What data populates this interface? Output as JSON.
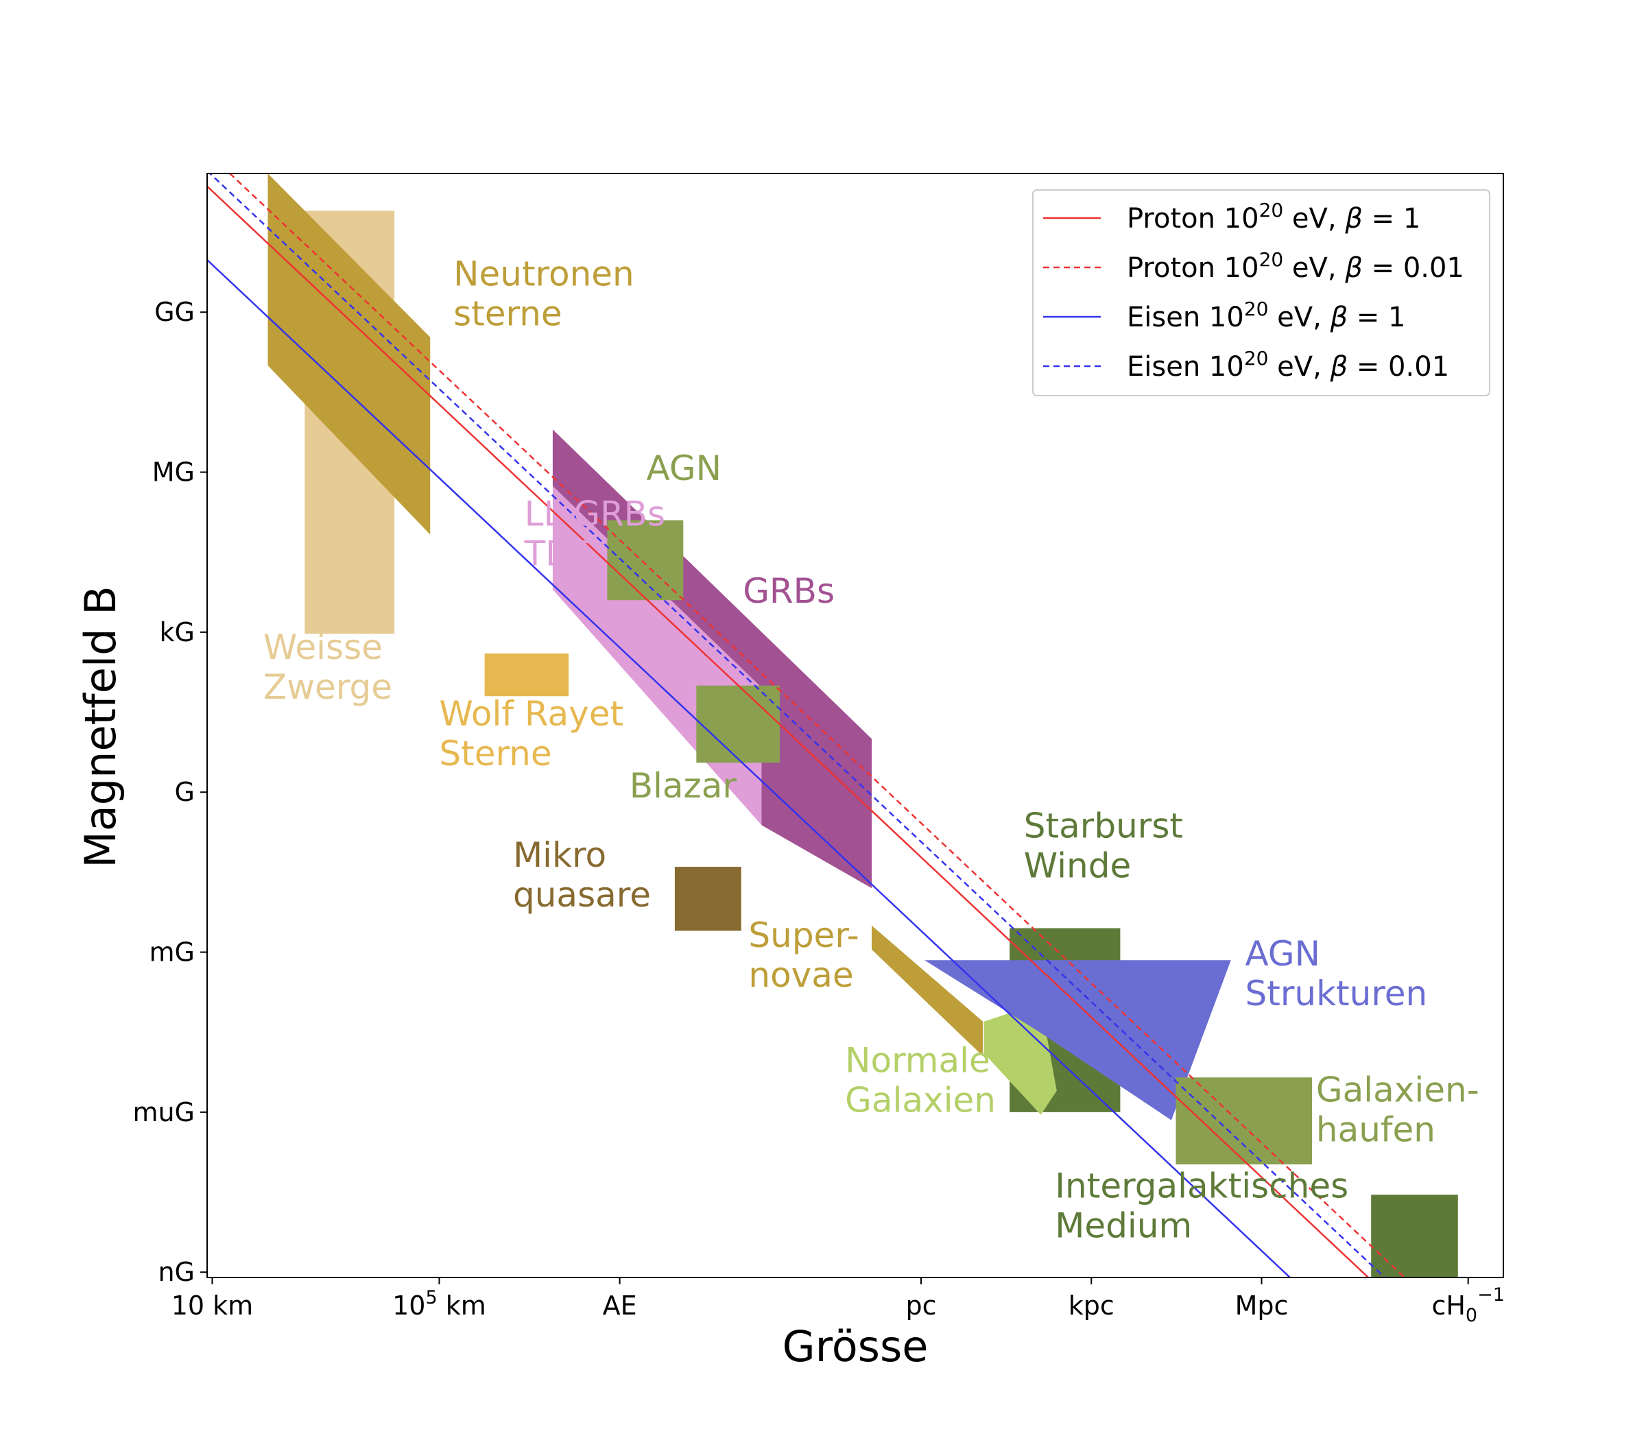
{
  "chart_data": {
    "type": "area",
    "xlabel": "Grösse",
    "ylabel": "Magnetfeld B",
    "x_scale": "log",
    "y_scale": "log",
    "x_unit": "cm",
    "y_unit": "Gauss",
    "xlim_log10": [
      5.91,
      28.75
    ],
    "ylim_log10": [
      -9.1,
      11.6
    ],
    "x_ticks": [
      {
        "log10": 6.0,
        "label": "10 km",
        "sup": "",
        "sub": ""
      },
      {
        "log10": 10.0,
        "label": "10",
        "sup": "5",
        "suffix": " km",
        "sub": ""
      },
      {
        "log10": 13.18,
        "label": "AE",
        "sup": "",
        "sub": ""
      },
      {
        "log10": 18.49,
        "label": "pc",
        "sup": "",
        "sub": ""
      },
      {
        "log10": 21.49,
        "label": "kpc",
        "sup": "",
        "sub": ""
      },
      {
        "log10": 24.49,
        "label": "Mpc",
        "sup": "",
        "sub": ""
      },
      {
        "log10": 28.13,
        "label": "cH",
        "sup": "−1",
        "sub": "0"
      }
    ],
    "y_ticks": [
      {
        "log10": 9,
        "label": "GG"
      },
      {
        "log10": 6,
        "label": "MG"
      },
      {
        "log10": 3,
        "label": "kG"
      },
      {
        "log10": 0,
        "label": "G"
      },
      {
        "log10": -3,
        "label": "mG"
      },
      {
        "log10": -6,
        "label": "muG"
      },
      {
        "log10": -9,
        "label": "nG"
      }
    ],
    "lines": [
      {
        "name": "Proton 10^20 eV, β = 1",
        "legend": {
          "pre": "Proton 10",
          "sup": "20",
          "post": " eV, ",
          "beta": "β",
          "eq": " = 1"
        },
        "color": "#ee3333",
        "dashed": false,
        "x_log10": [
          5.91,
          28.75
        ],
        "y_log10": [
          11.36,
          -11.48
        ]
      },
      {
        "name": "Proton 10^20 eV, β = 0.01",
        "legend": {
          "pre": "Proton 10",
          "sup": "20",
          "post": " eV, ",
          "beta": "β",
          "eq": " = 0.01"
        },
        "color": "#ee3333",
        "dashed": true,
        "x_log10": [
          5.91,
          28.75
        ],
        "y_log10": [
          12.0,
          -10.84
        ]
      },
      {
        "name": "Eisen 10^20 eV, β = 1",
        "legend": {
          "pre": "Eisen 10",
          "sup": "20",
          "post": " eV, ",
          "beta": "β",
          "eq": " = 1"
        },
        "color": "#3333ee",
        "dashed": false,
        "x_log10": [
          5.91,
          28.75
        ],
        "y_log10": [
          9.98,
          -12.86
        ]
      },
      {
        "name": "Eisen 10^20 eV, β = 0.01",
        "legend": {
          "pre": "Eisen 10",
          "sup": "20",
          "post": " eV, ",
          "beta": "β",
          "eq": " = 0.01"
        },
        "color": "#3333ee",
        "dashed": true,
        "x_log10": [
          5.91,
          28.75
        ],
        "y_log10": [
          11.65,
          -11.19
        ]
      }
    ],
    "regions": [
      {
        "lines": [
          "Weisse",
          "Zwerge"
        ],
        "color": "#e6cb94",
        "label_color": "#e6cb94",
        "points": [
          [
            7.63,
            10.9
          ],
          [
            9.21,
            10.9
          ],
          [
            9.21,
            2.97
          ],
          [
            7.63,
            2.97
          ]
        ],
        "label_at": [
          6.9,
          2.5
        ]
      },
      {
        "lines": [
          "Neutronen",
          "sterne"
        ],
        "color": "#bd9e38",
        "label_color": "#bd9e38",
        "points": [
          [
            6.98,
            11.6
          ],
          [
            9.84,
            8.53
          ],
          [
            9.84,
            4.83
          ],
          [
            6.98,
            8.0
          ]
        ],
        "label_at": [
          10.25,
          9.5
        ]
      },
      {
        "lines": [
          "LL GRBs",
          "TDE"
        ],
        "color": "#df9ed8",
        "label_color": "#df9ed8",
        "points": [
          [
            12.0,
            5.74
          ],
          [
            15.68,
            1.96
          ],
          [
            15.68,
            -0.62
          ],
          [
            12.0,
            3.8
          ]
        ],
        "label_at": [
          11.5,
          5.0
        ]
      },
      {
        "lines": [
          "GRBs"
        ],
        "color": "#a25193",
        "label_color": "#a25193",
        "points": [
          [
            12.0,
            6.8
          ],
          [
            17.62,
            1.0
          ],
          [
            17.62,
            -1.8
          ],
          [
            15.68,
            -0.62
          ],
          [
            15.68,
            1.96
          ],
          [
            12.0,
            5.74
          ]
        ],
        "label_at": [
          15.35,
          3.55
        ]
      },
      {
        "lines": [
          "AGN"
        ],
        "color": "#8aa050",
        "label_color": "#8aa050",
        "points": [
          [
            12.96,
            5.1
          ],
          [
            14.3,
            5.1
          ],
          [
            14.3,
            3.6
          ],
          [
            12.96,
            3.6
          ]
        ],
        "label_at": [
          13.65,
          5.85
        ]
      },
      {
        "lines": [
          "Wolf Rayet",
          "Sterne"
        ],
        "color": "#e7b84f",
        "label_color": "#e7b84f",
        "points": [
          [
            10.8,
            2.6
          ],
          [
            12.28,
            2.6
          ],
          [
            12.28,
            1.8
          ],
          [
            10.8,
            1.8
          ]
        ],
        "label_at": [
          10.0,
          1.25
        ]
      },
      {
        "lines": [
          "Blazar"
        ],
        "color": "#8aa050",
        "label_color": "#8aa050",
        "points": [
          [
            14.53,
            2.0
          ],
          [
            16.0,
            2.0
          ],
          [
            16.0,
            0.55
          ],
          [
            14.53,
            0.55
          ]
        ],
        "label_at": [
          13.35,
          -0.1
        ]
      },
      {
        "lines": [
          "Mikro",
          "quasare"
        ],
        "color": "#876a30",
        "label_color": "#876a30",
        "points": [
          [
            14.15,
            -1.4
          ],
          [
            15.32,
            -1.4
          ],
          [
            15.32,
            -2.6
          ],
          [
            14.15,
            -2.6
          ]
        ],
        "label_at": [
          11.3,
          -1.4
        ]
      },
      {
        "lines": [
          "Super-",
          "novae"
        ],
        "color": "#bd9e38",
        "label_color": "#bd9e38",
        "points": [
          [
            17.62,
            -2.5
          ],
          [
            19.58,
            -4.3
          ],
          [
            19.58,
            -4.95
          ],
          [
            17.62,
            -2.95
          ]
        ],
        "label_at": [
          15.45,
          -2.9
        ]
      },
      {
        "lines": [
          "Starburst",
          "Winde"
        ],
        "color": "#5e7a38",
        "label_color": "#5e7a38",
        "points": [
          [
            20.05,
            -2.55
          ],
          [
            22.0,
            -2.55
          ],
          [
            22.0,
            -6.0
          ],
          [
            20.05,
            -6.0
          ]
        ],
        "label_at": [
          20.3,
          -0.85
        ]
      },
      {
        "lines": [
          "Normale",
          "Galaxien"
        ],
        "color": "#b4d068",
        "label_color": "#b4d068",
        "points": [
          [
            19.6,
            -4.3
          ],
          [
            20.6,
            -3.95
          ],
          [
            20.88,
            -5.6
          ],
          [
            20.6,
            -6.05
          ],
          [
            19.6,
            -4.9
          ]
        ],
        "label_at": [
          17.15,
          -5.25
        ]
      },
      {
        "lines": [
          "AGN",
          "Strukturen"
        ],
        "color": "#6a6dd1",
        "label_color": "#6a6dd1",
        "points": [
          [
            18.55,
            -3.15
          ],
          [
            23.95,
            -3.15
          ],
          [
            22.9,
            -6.15
          ],
          [
            20.58,
            -4.5
          ]
        ],
        "label_at": [
          24.2,
          -3.25
        ]
      },
      {
        "lines": [
          "Galaxien-",
          "haufen"
        ],
        "color": "#8aa050",
        "label_color": "#8aa050",
        "points": [
          [
            22.98,
            -5.35
          ],
          [
            25.38,
            -5.35
          ],
          [
            25.38,
            -6.98
          ],
          [
            22.98,
            -6.98
          ]
        ],
        "label_at": [
          25.45,
          -5.8
        ]
      },
      {
        "lines": [
          "Intergalaktisches",
          "Medium"
        ],
        "color": "#5e7a38",
        "label_color": "#5e7a38",
        "points": [
          [
            26.42,
            -7.55
          ],
          [
            27.95,
            -7.55
          ],
          [
            27.95,
            -9.1
          ],
          [
            26.42,
            -9.1
          ]
        ],
        "label_at": [
          20.85,
          -7.6
        ]
      }
    ]
  }
}
